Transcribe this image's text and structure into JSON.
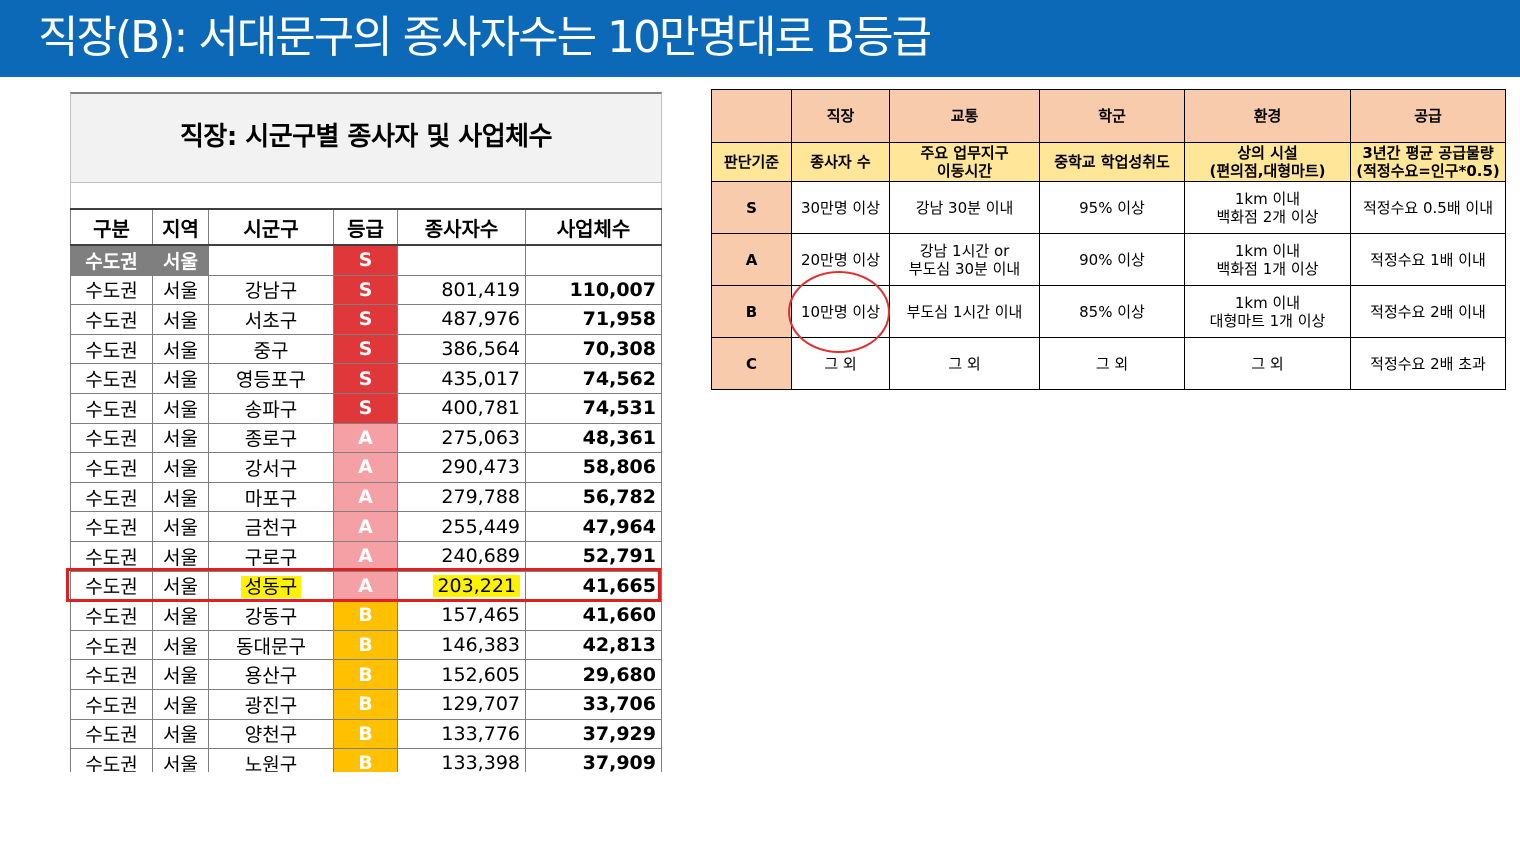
{
  "slide": {
    "title": "직장(B): 서대문구의 종사자수는 10만명대로 B등급"
  },
  "sheet": {
    "title": "직장: 시군구별 종사자 및 사업체수",
    "headers": [
      "구분",
      "지역",
      "시군구",
      "등급",
      "종사자수",
      "사업체수"
    ],
    "summary_row": {
      "division": "수도권",
      "region": "서울",
      "grade": "S"
    },
    "rows": [
      {
        "division": "수도권",
        "region": "서울",
        "district": "강남구",
        "grade": "S",
        "employees": "801,419",
        "businesses": "110,007"
      },
      {
        "division": "수도권",
        "region": "서울",
        "district": "서초구",
        "grade": "S",
        "employees": "487,976",
        "businesses": "71,958"
      },
      {
        "division": "수도권",
        "region": "서울",
        "district": "중구",
        "grade": "S",
        "employees": "386,564",
        "businesses": "70,308"
      },
      {
        "division": "수도권",
        "region": "서울",
        "district": "영등포구",
        "grade": "S",
        "employees": "435,017",
        "businesses": "74,562"
      },
      {
        "division": "수도권",
        "region": "서울",
        "district": "송파구",
        "grade": "S",
        "employees": "400,781",
        "businesses": "74,531"
      },
      {
        "division": "수도권",
        "region": "서울",
        "district": "종로구",
        "grade": "A",
        "employees": "275,063",
        "businesses": "48,361"
      },
      {
        "division": "수도권",
        "region": "서울",
        "district": "강서구",
        "grade": "A",
        "employees": "290,473",
        "businesses": "58,806"
      },
      {
        "division": "수도권",
        "region": "서울",
        "district": "마포구",
        "grade": "A",
        "employees": "279,788",
        "businesses": "56,782"
      },
      {
        "division": "수도권",
        "region": "서울",
        "district": "금천구",
        "grade": "A",
        "employees": "255,449",
        "businesses": "47,964"
      },
      {
        "division": "수도권",
        "region": "서울",
        "district": "구로구",
        "grade": "A",
        "employees": "240,689",
        "businesses": "52,791"
      },
      {
        "division": "수도권",
        "region": "서울",
        "district": "성동구",
        "grade": "A",
        "employees": "203,221",
        "businesses": "41,665",
        "highlight": true
      },
      {
        "division": "수도권",
        "region": "서울",
        "district": "강동구",
        "grade": "B",
        "employees": "157,465",
        "businesses": "41,660"
      },
      {
        "division": "수도권",
        "region": "서울",
        "district": "동대문구",
        "grade": "B",
        "employees": "146,383",
        "businesses": "42,813"
      },
      {
        "division": "수도권",
        "region": "서울",
        "district": "용산구",
        "grade": "B",
        "employees": "152,605",
        "businesses": "29,680"
      },
      {
        "division": "수도권",
        "region": "서울",
        "district": "광진구",
        "grade": "B",
        "employees": "129,707",
        "businesses": "33,706"
      },
      {
        "division": "수도권",
        "region": "서울",
        "district": "양천구",
        "grade": "B",
        "employees": "133,776",
        "businesses": "37,929"
      },
      {
        "division": "수도권",
        "region": "서울",
        "district": "노원구",
        "grade": "B",
        "employees": "133,398",
        "businesses": "37,909"
      }
    ]
  },
  "criteria": {
    "categories": [
      "직장",
      "교통",
      "학군",
      "환경",
      "공급"
    ],
    "basis_label": "판단기준",
    "basis": [
      "종사자 수",
      "주요 업무지구\n이동시간",
      "중학교 학업성취도",
      "상의 시설\n(편의점,대형마트)",
      "3년간 평균 공급물량\n(적정수요=인구*0.5)"
    ],
    "grades": [
      {
        "grade": "S",
        "cells": [
          "30만명 이상",
          "강남 30분 이내",
          "95% 이상",
          "1km 이내\n백화점 2개 이상",
          "적정수요 0.5배 이내"
        ]
      },
      {
        "grade": "A",
        "cells": [
          "20만명 이상",
          "강남 1시간 or\n부도심 30분 이내",
          "90% 이상",
          "1km 이내\n백화점 1개 이상",
          "적정수요 1배 이내"
        ]
      },
      {
        "grade": "B",
        "cells": [
          "10만명 이상",
          "부도심 1시간 이내",
          "85% 이상",
          "1km 이내\n대형마트 1개 이상",
          "적정수요 2배 이내"
        ]
      },
      {
        "grade": "C",
        "cells": [
          "그 외",
          "그 외",
          "그 외",
          "그 외",
          "적정수요 2배 초과"
        ]
      }
    ]
  },
  "colors": {
    "title_bar": "#0b69b8",
    "grade_S": "#e0383a",
    "grade_A": "#f4a0a4",
    "grade_B": "#ffc000",
    "highlight": "#fff200",
    "header_peach": "#f8cbad",
    "header_yellow": "#ffe699"
  }
}
